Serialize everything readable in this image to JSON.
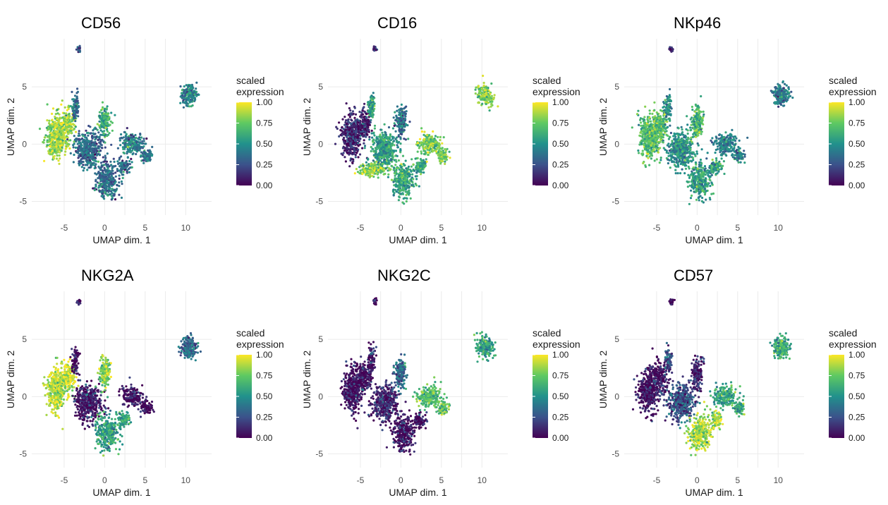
{
  "legend": {
    "title_line1": "scaled",
    "title_line2": "expression",
    "ticks": [
      "1.00",
      "0.75",
      "0.50",
      "0.25",
      "0.00"
    ]
  },
  "colorscale": [
    "#440154",
    "#3b528b",
    "#21918c",
    "#5ec962",
    "#fde725"
  ],
  "chart_data": [
    {
      "type": "scatter",
      "title": "CD56",
      "xlabel": "UMAP dim. 1",
      "ylabel": "UMAP dim. 2",
      "xticks": [
        "-5",
        "0",
        "5",
        "10"
      ],
      "yticks": [
        "5",
        "0",
        "-5"
      ],
      "colorbar_label": "scaled expression",
      "regions": [
        {
          "area": "left lobe",
          "level": 0.85
        },
        {
          "area": "center",
          "level": 0.35
        },
        {
          "area": "upper arm",
          "level": 0.6
        },
        {
          "area": "right arm",
          "level": 0.4
        },
        {
          "area": "bottom lobe",
          "level": 0.35
        },
        {
          "area": "top speck",
          "level": 0.3
        },
        {
          "area": "right cluster",
          "level": 0.45
        }
      ]
    },
    {
      "type": "scatter",
      "title": "CD16",
      "xlabel": "UMAP dim. 1",
      "ylabel": "UMAP dim. 2",
      "xticks": [
        "-5",
        "0",
        "5",
        "10"
      ],
      "yticks": [
        "5",
        "0",
        "-5"
      ],
      "colorbar_label": "scaled expression",
      "regions": [
        {
          "area": "left lobe",
          "level": 0.1
        },
        {
          "area": "lower left band",
          "level": 0.8
        },
        {
          "area": "center",
          "level": 0.55
        },
        {
          "area": "upper arm",
          "level": 0.4
        },
        {
          "area": "right arm",
          "level": 0.75
        },
        {
          "area": "bottom lobe",
          "level": 0.6
        },
        {
          "area": "top speck",
          "level": 0.1
        },
        {
          "area": "right cluster",
          "level": 0.8
        }
      ]
    },
    {
      "type": "scatter",
      "title": "NKp46",
      "xlabel": "UMAP dim. 1",
      "ylabel": "UMAP dim. 2",
      "xticks": [
        "-5",
        "0",
        "5",
        "10"
      ],
      "yticks": [
        "5",
        "0",
        "-5"
      ],
      "colorbar_label": "scaled expression",
      "regions": [
        {
          "area": "left lobe",
          "level": 0.7
        },
        {
          "area": "center",
          "level": 0.5
        },
        {
          "area": "upper arm",
          "level": 0.65
        },
        {
          "area": "right arm",
          "level": 0.45
        },
        {
          "area": "bottom lobe",
          "level": 0.55
        },
        {
          "area": "top speck",
          "level": 0.15
        },
        {
          "area": "right cluster",
          "level": 0.4
        }
      ]
    },
    {
      "type": "scatter",
      "title": "NKG2A",
      "xlabel": "UMAP dim. 1",
      "ylabel": "UMAP dim. 2",
      "xticks": [
        "-5",
        "0",
        "5",
        "10"
      ],
      "yticks": [
        "5",
        "0",
        "-5"
      ],
      "colorbar_label": "scaled expression",
      "regions": [
        {
          "area": "left lobe",
          "level": 0.9
        },
        {
          "area": "center",
          "level": 0.05
        },
        {
          "area": "upper arm",
          "level": 0.8
        },
        {
          "area": "right arm",
          "level": 0.05
        },
        {
          "area": "bottom lobe",
          "level": 0.55
        },
        {
          "area": "top speck",
          "level": 0.05
        },
        {
          "area": "right cluster",
          "level": 0.35
        }
      ]
    },
    {
      "type": "scatter",
      "title": "NKG2C",
      "xlabel": "UMAP dim. 1",
      "ylabel": "UMAP dim. 2",
      "xticks": [
        "-5",
        "0",
        "5",
        "10"
      ],
      "yticks": [
        "5",
        "0",
        "-5"
      ],
      "colorbar_label": "scaled expression",
      "regions": [
        {
          "area": "left lobe",
          "level": 0.05
        },
        {
          "area": "center",
          "level": 0.1
        },
        {
          "area": "upper arm",
          "level": 0.35
        },
        {
          "area": "right arm",
          "level": 0.7
        },
        {
          "area": "bottom lobe",
          "level": 0.05
        },
        {
          "area": "top speck",
          "level": 0.05
        },
        {
          "area": "right cluster",
          "level": 0.55
        }
      ]
    },
    {
      "type": "scatter",
      "title": "CD57",
      "xlabel": "UMAP dim. 1",
      "ylabel": "UMAP dim. 2",
      "xticks": [
        "-5",
        "0",
        "5",
        "10"
      ],
      "yticks": [
        "5",
        "0",
        "-5"
      ],
      "colorbar_label": "scaled expression",
      "regions": [
        {
          "area": "left lobe",
          "level": 0.05
        },
        {
          "area": "center",
          "level": 0.25
        },
        {
          "area": "upper arm",
          "level": 0.1
        },
        {
          "area": "right arm",
          "level": 0.6
        },
        {
          "area": "bottom lobe",
          "level": 0.85
        },
        {
          "area": "top speck",
          "level": 0.05
        },
        {
          "area": "right cluster",
          "level": 0.6
        }
      ]
    }
  ]
}
